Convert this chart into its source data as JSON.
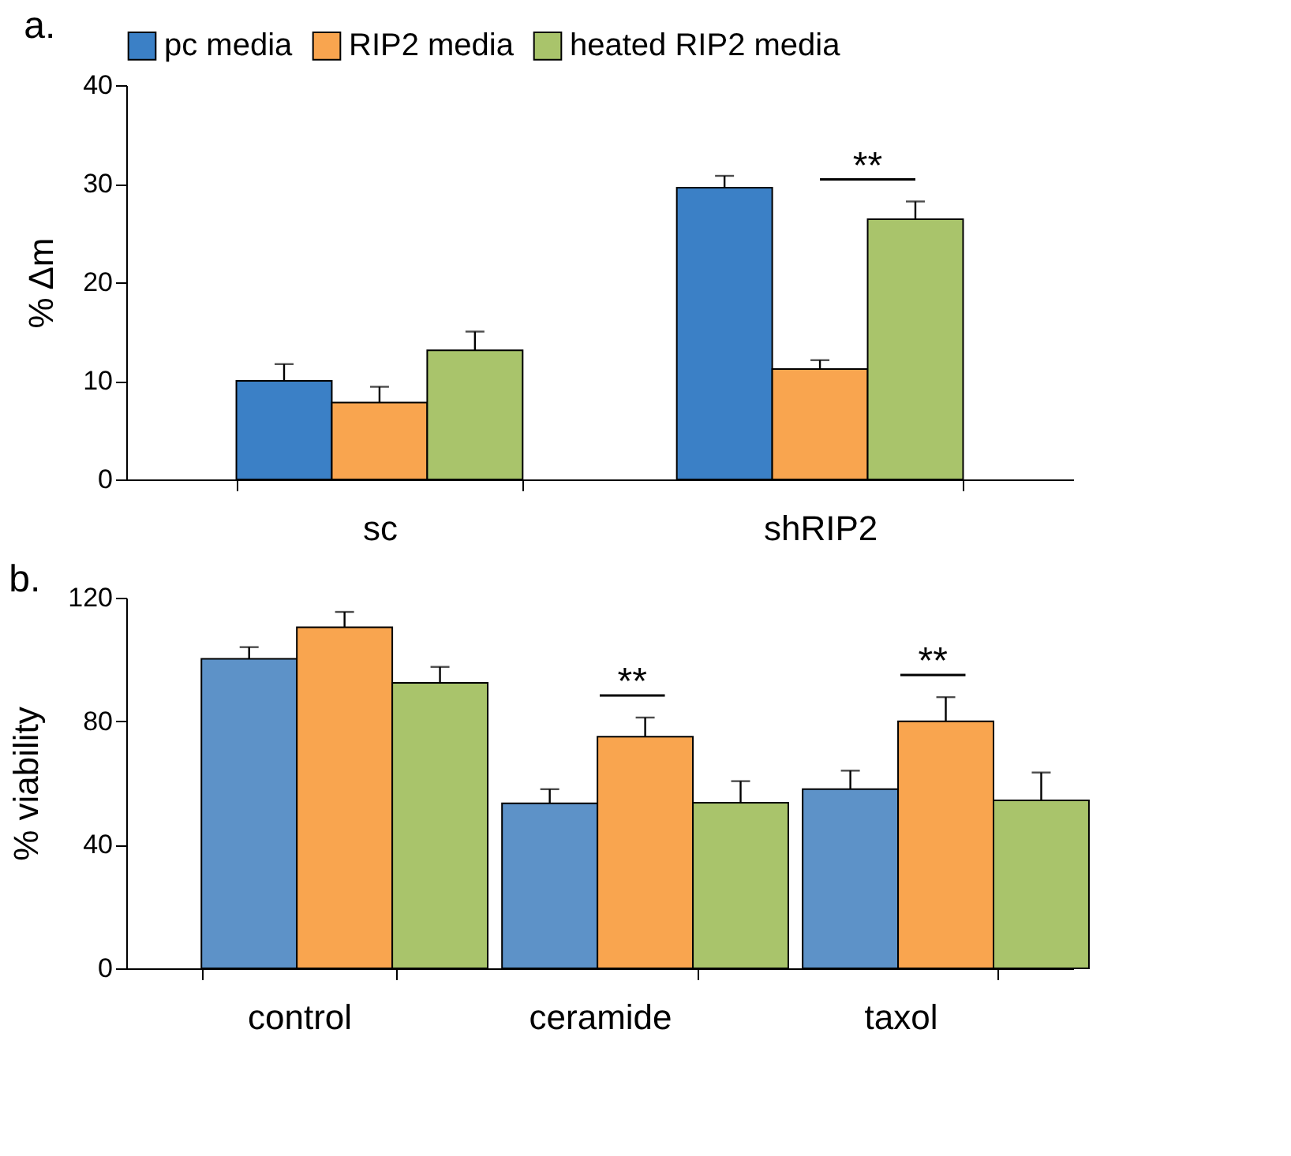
{
  "chart_data": [
    {
      "type": "bar",
      "title": "a.",
      "ylabel": "% Δm",
      "categories": [
        "sc",
        "shRIP2"
      ],
      "ylim": [
        0,
        40
      ],
      "yticks": [
        0,
        10,
        20,
        30,
        40
      ],
      "grid": false,
      "legend": "top",
      "series": [
        {
          "name": "pc media",
          "color": "#3b80c6",
          "values": [
            10.0,
            29.6
          ],
          "errors": [
            1.7,
            1.2
          ]
        },
        {
          "name": "RIP2 media",
          "color": "#f9a54f",
          "values": [
            7.8,
            11.2
          ],
          "errors": [
            1.6,
            0.9
          ]
        },
        {
          "name": "heated RIP2 media",
          "color": "#a9c46b",
          "values": [
            13.1,
            26.4
          ],
          "errors": [
            1.9,
            1.8
          ]
        }
      ],
      "annotations": [
        "**"
      ]
    },
    {
      "type": "bar",
      "title": "b.",
      "ylabel": "% viability",
      "categories": [
        "control",
        "ceramide",
        "taxol"
      ],
      "ylim": [
        0,
        120
      ],
      "yticks": [
        0,
        40,
        80,
        120
      ],
      "grid": false,
      "series": [
        {
          "color": "#5d92c8",
          "values": [
            100.2,
            53.4,
            58.0
          ],
          "errors": [
            3.8,
            4.6,
            6.0
          ]
        },
        {
          "color": "#f9a54f",
          "values": [
            110.4,
            75.0,
            80.0
          ],
          "errors": [
            5.0,
            6.2,
            7.8
          ]
        },
        {
          "color": "#a9c46b",
          "values": [
            92.4,
            53.6,
            54.4
          ],
          "errors": [
            5.2,
            7.0,
            9.0
          ]
        }
      ],
      "annotations": [
        "**",
        "**"
      ]
    }
  ]
}
